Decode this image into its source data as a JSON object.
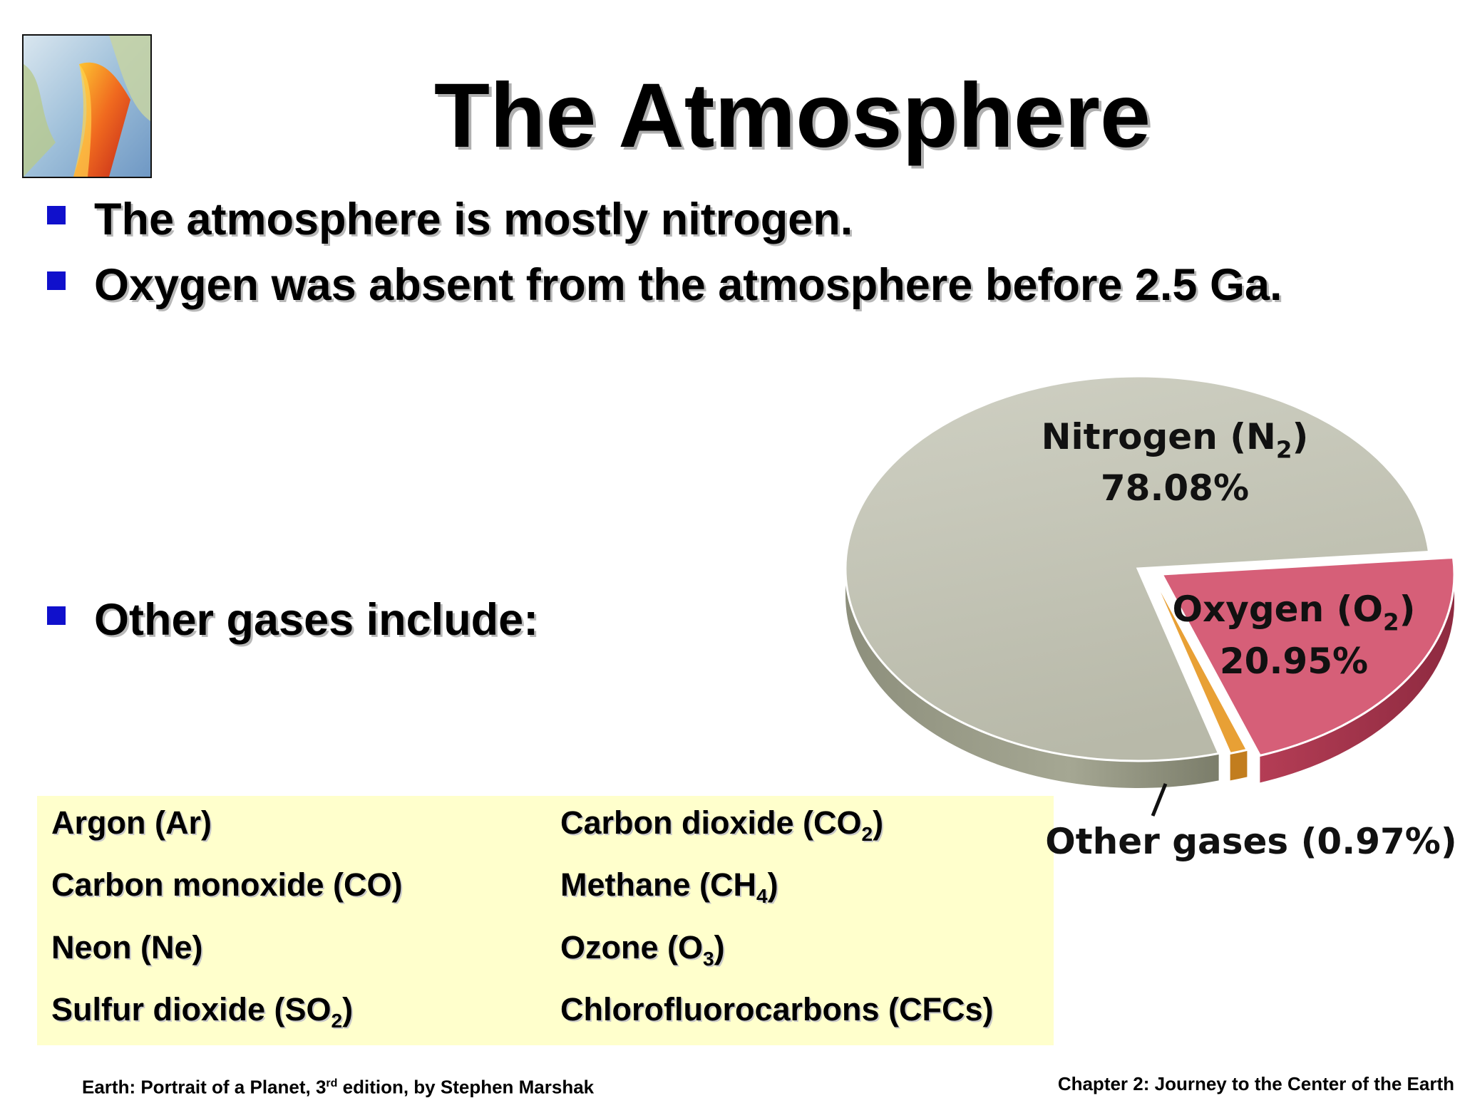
{
  "slide": {
    "title": "The Atmosphere",
    "bullets": [
      "The atmosphere is mostly nitrogen.",
      "Oxygen was absent from the atmosphere before  2.5 Ga.",
      "Other gases include:"
    ]
  },
  "gases": {
    "left": [
      {
        "name": "Argon (Ar)",
        "sub": "",
        "tail": ""
      },
      {
        "name": "Carbon monoxide (CO)",
        "sub": "",
        "tail": ""
      },
      {
        "name": "Neon (Ne)",
        "sub": "",
        "tail": ""
      },
      {
        "name": "Sulfur dioxide (SO",
        "sub": "2",
        "tail": ")"
      }
    ],
    "right": [
      {
        "name": "Carbon dioxide (CO",
        "sub": "2",
        "tail": ")"
      },
      {
        "name": "Methane (CH",
        "sub": "4",
        "tail": ")"
      },
      {
        "name": "Ozone (O",
        "sub": "3",
        "tail": ")"
      },
      {
        "name": "Chlorofluorocarbons (CFCs)",
        "sub": "",
        "tail": ""
      }
    ]
  },
  "chart_data": {
    "type": "pie",
    "title": "",
    "slices": [
      {
        "label": "Nitrogen (N2)",
        "label_main": "Nitrogen (N",
        "label_sub": "2",
        "label_tail": ")",
        "value": 78.08,
        "value_label": "78.08%",
        "color": "#c2c3b4"
      },
      {
        "label": "Oxygen (O2)",
        "label_main": "Oxygen (O",
        "label_sub": "2",
        "label_tail": ")",
        "value": 20.95,
        "value_label": "20.95%",
        "color": "#d65f78"
      },
      {
        "label": "Other gases",
        "label_main": "Other gases (0.97%)",
        "label_sub": "",
        "label_tail": "",
        "value": 0.97,
        "value_label": "",
        "color": "#e8a035"
      }
    ]
  },
  "footer": {
    "left_a": "Earth: Portrait of a Planet, 3",
    "left_sup": "rd",
    "left_b": " edition, by Stephen Marshak",
    "right": "Chapter 2: Journey to the Center of the Earth"
  },
  "colors": {
    "bullet_square": "#1010cc",
    "gas_box": "#ffffcc"
  }
}
